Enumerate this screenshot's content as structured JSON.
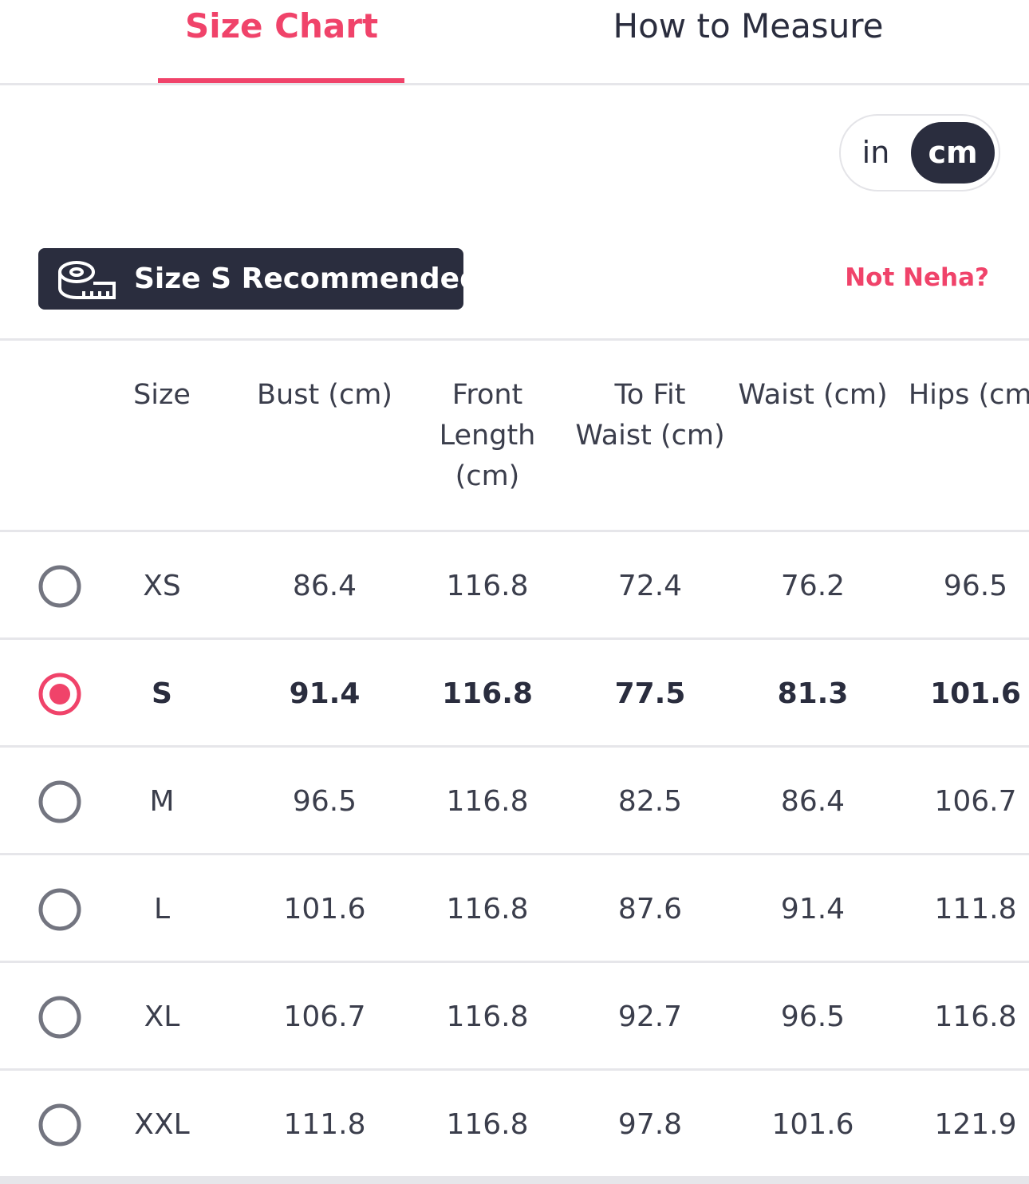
{
  "tabs": [
    "Size Chart",
    "How to Measure"
  ],
  "active_tab": 0,
  "unit_toggle": {
    "options": [
      "in",
      "cm"
    ],
    "active": 1
  },
  "recommendation": "Size S Recommended",
  "user_link": "Not Neha?",
  "table": {
    "headers": [
      "Size",
      "Bust (cm)",
      "Front Length (cm)",
      "To Fit Waist (cm)",
      "Waist (cm)",
      "Hips (cm)"
    ],
    "selected": 1,
    "rows": [
      [
        "XS",
        "86.4",
        "116.8",
        "72.4",
        "76.2",
        "96.5"
      ],
      [
        "S",
        "91.4",
        "116.8",
        "77.5",
        "81.3",
        "101.6"
      ],
      [
        "M",
        "96.5",
        "116.8",
        "82.5",
        "86.4",
        "106.7"
      ],
      [
        "L",
        "101.6",
        "116.8",
        "87.6",
        "91.4",
        "111.8"
      ],
      [
        "XL",
        "106.7",
        "116.8",
        "92.7",
        "96.5",
        "116.8"
      ],
      [
        "XXL",
        "111.8",
        "116.8",
        "97.8",
        "101.6",
        "121.9"
      ]
    ]
  }
}
